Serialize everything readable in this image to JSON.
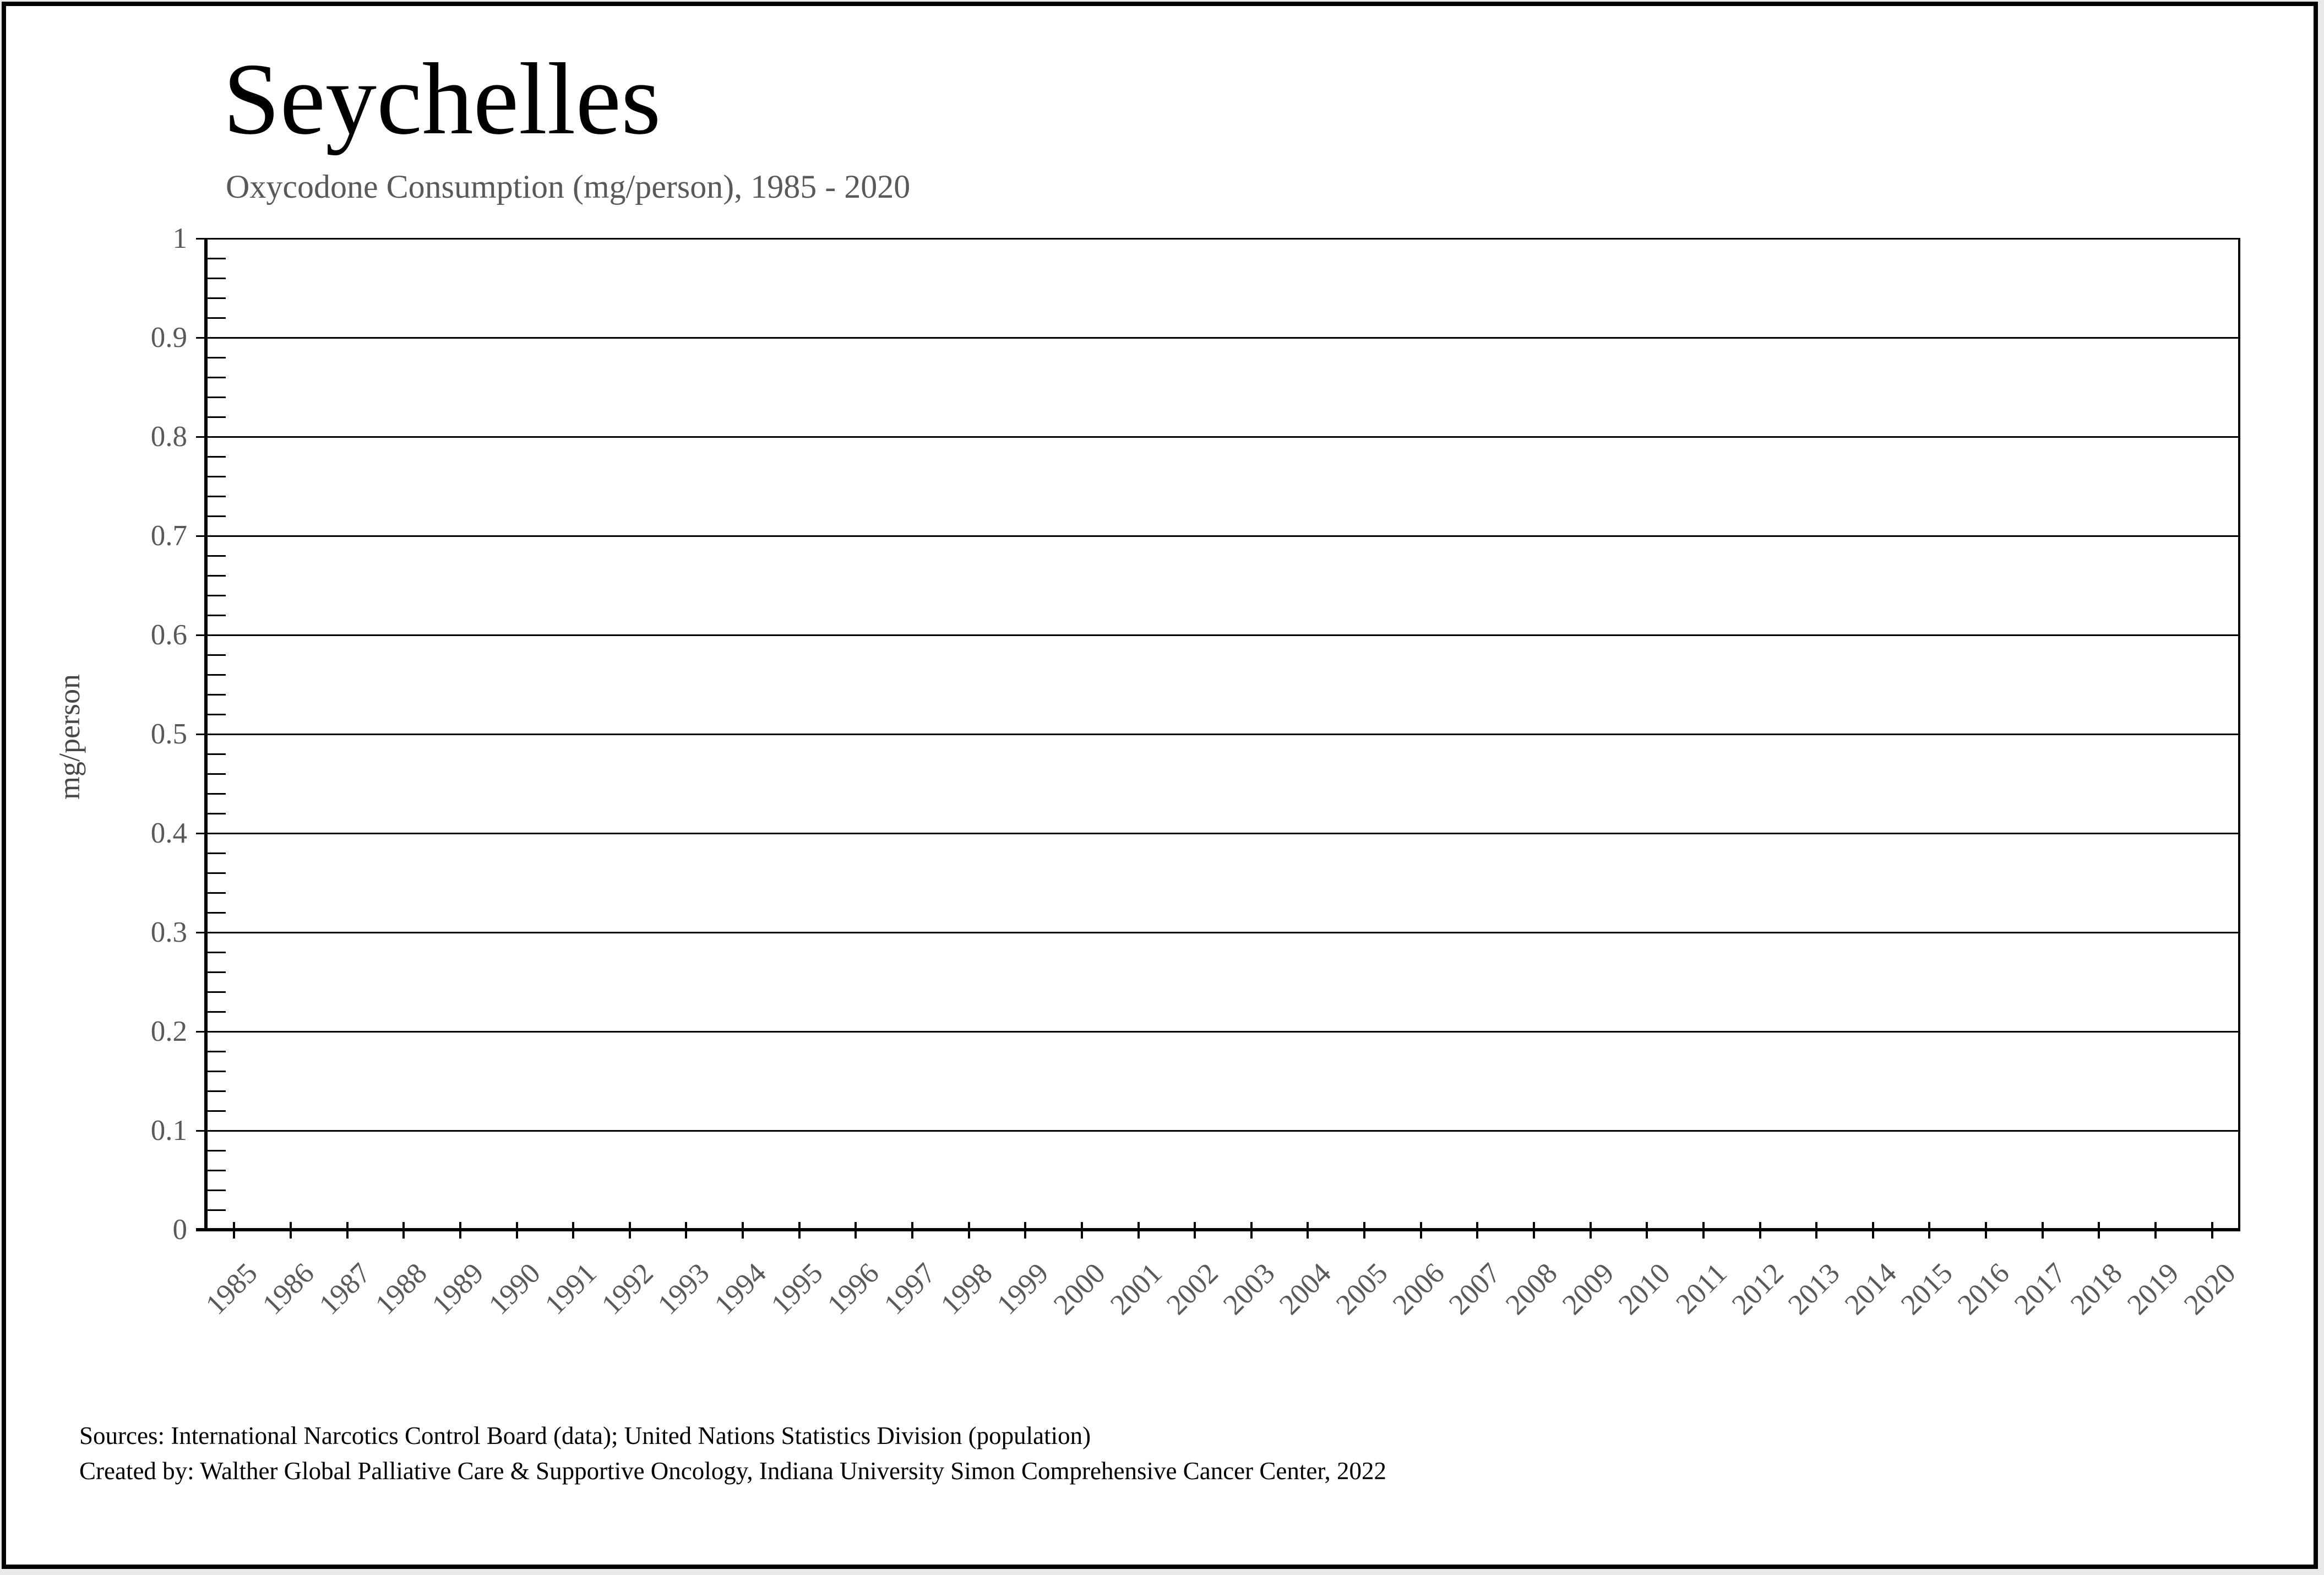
{
  "header": {
    "title": "Seychelles",
    "subtitle": "Oxycodone Consumption (mg/person), 1985 - 2020"
  },
  "chart_data": {
    "type": "line",
    "title": "Seychelles",
    "subtitle": "Oxycodone Consumption (mg/person), 1985 - 2020",
    "xlabel": "",
    "ylabel": "mg/person",
    "ylim": [
      0,
      1
    ],
    "y_major_step": 0.1,
    "y_minor_step": 0.02,
    "ytick_labels": [
      "1",
      "0.9",
      "0.8",
      "0.7",
      "0.6",
      "0.5",
      "0.4",
      "0.3",
      "0.2",
      "0.1",
      "0"
    ],
    "grid": "horizontal-major",
    "legend": "none",
    "categories": [
      "1985",
      "1986",
      "1987",
      "1988",
      "1989",
      "1990",
      "1991",
      "1992",
      "1993",
      "1994",
      "1995",
      "1996",
      "1997",
      "1998",
      "1999",
      "2000",
      "2001",
      "2002",
      "2003",
      "2004",
      "2005",
      "2006",
      "2007",
      "2008",
      "2009",
      "2010",
      "2011",
      "2012",
      "2013",
      "2014",
      "2015",
      "2016",
      "2017",
      "2018",
      "2019",
      "2020"
    ],
    "series": []
  },
  "footer": {
    "sources": "Sources: International Narcotics Control Board (data); United Nations Statistics Division (population)",
    "created_by": "Created by: Walther Global Palliative Care & Supportive Oncology, Indiana University Simon Comprehensive Cancer Center, 2022"
  },
  "colors": {
    "axis": "#000000",
    "grid": "#000000",
    "muted_text": "#595959",
    "background": "#ffffff"
  }
}
